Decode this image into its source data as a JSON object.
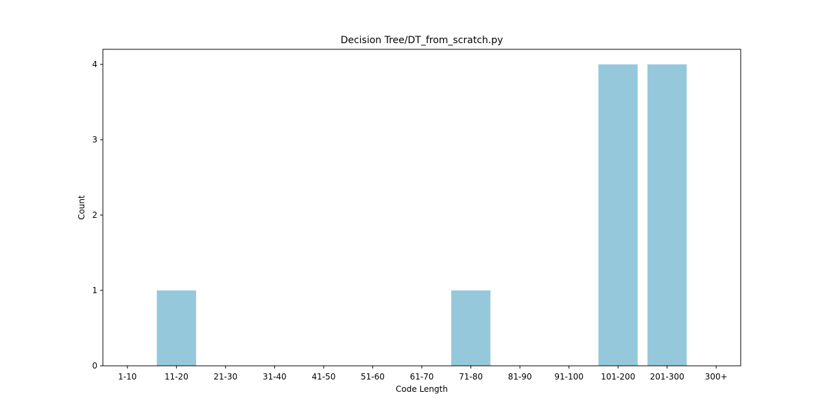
{
  "chart_data": {
    "type": "bar",
    "title": "Decision Tree/DT_from_scratch.py",
    "xlabel": "Code Length",
    "ylabel": "Count",
    "categories": [
      "1-10",
      "11-20",
      "21-30",
      "31-40",
      "41-50",
      "51-60",
      "61-70",
      "71-80",
      "81-90",
      "91-100",
      "101-200",
      "201-300",
      "300+"
    ],
    "values": [
      0,
      1,
      0,
      0,
      0,
      0,
      0,
      1,
      0,
      0,
      4,
      4,
      0
    ],
    "ylim": [
      0,
      4.2
    ],
    "yticks": [
      0,
      1,
      2,
      3,
      4
    ],
    "grid": false,
    "bar_color": "#96c8dc"
  }
}
